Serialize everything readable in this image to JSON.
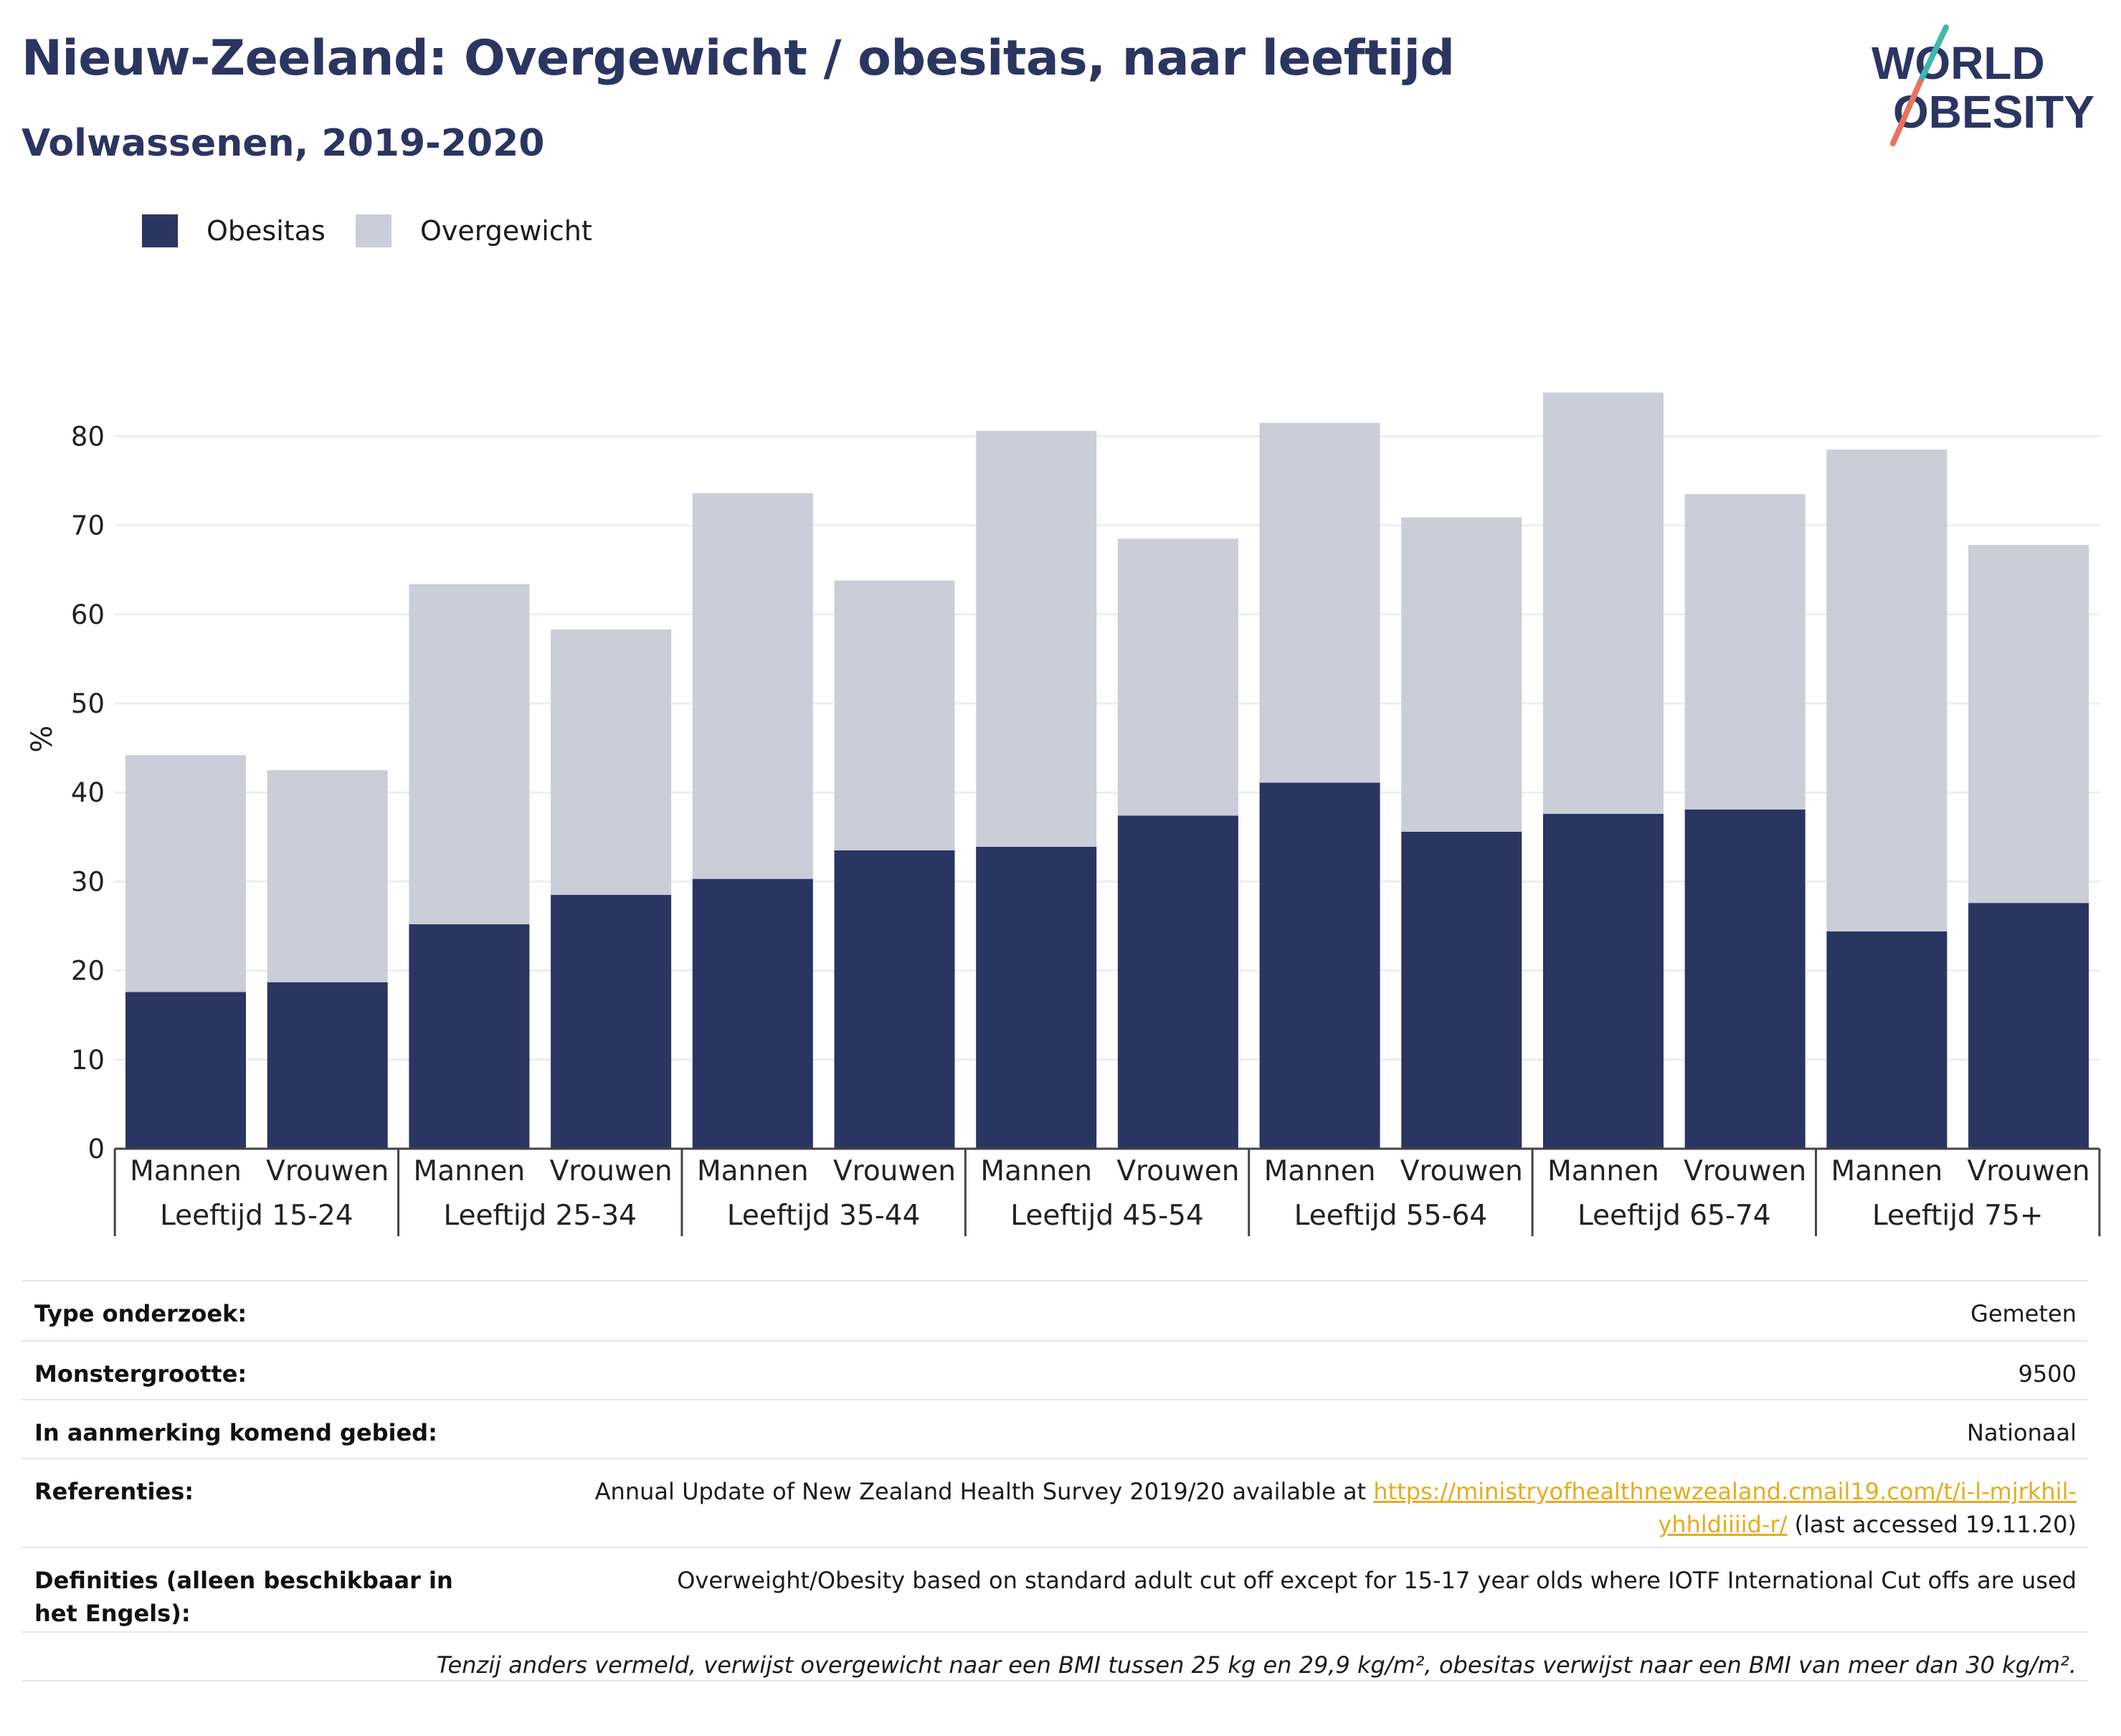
{
  "header": {
    "title": "Nieuw-Zeeland: Overgewicht / obesitas, naar leeftijd",
    "subtitle": "Volwassenen, 2019-2020"
  },
  "logo": {
    "line1": "WORLD",
    "line2": "OBESITY"
  },
  "colors": {
    "obesity": "#2b3561",
    "overweight": "#cbcdd8",
    "title": "#2b3561",
    "link": "#e6ab1e",
    "logo_slash_teal": "#3fb6ac",
    "logo_slash_coral": "#e9725d"
  },
  "legend": [
    {
      "label": "Obesitas",
      "color": "#2b3561"
    },
    {
      "label": "Overgewicht",
      "color": "#cbcdd8"
    }
  ],
  "chart_data": {
    "type": "bar",
    "stacked": true,
    "ylabel": "%",
    "ylim": [
      0,
      88
    ],
    "yticks": [
      0,
      10,
      20,
      30,
      40,
      50,
      60,
      70,
      80
    ],
    "grid": true,
    "groups": [
      "Leeftijd 15-24",
      "Leeftijd 25-34",
      "Leeftijd 35-44",
      "Leeftijd 45-54",
      "Leeftijd 55-64",
      "Leeftijd 65-74",
      "Leeftijd 75+"
    ],
    "subcategories": [
      "Mannen",
      "Vrouwen"
    ],
    "series": [
      {
        "name": "Obesitas",
        "values": [
          17.6,
          18.7,
          25.2,
          28.5,
          30.3,
          33.5,
          33.9,
          37.4,
          41.1,
          35.6,
          37.6,
          38.1,
          24.4,
          27.6
        ]
      },
      {
        "name": "Overgewicht",
        "values": [
          26.6,
          23.8,
          38.2,
          29.8,
          43.3,
          30.3,
          46.7,
          31.1,
          40.4,
          35.3,
          47.3,
          35.4,
          54.1,
          40.2
        ]
      }
    ]
  },
  "meta": [
    {
      "label": "Type onderzoek:",
      "value": "Gemeten"
    },
    {
      "label": "Monstergrootte:",
      "value": "9500"
    },
    {
      "label": "In aanmerking komend gebied:",
      "value": "Nationaal"
    },
    {
      "label": "Referenties:",
      "value_prefix": "Annual Update of New Zealand Health Survey 2019/20 available at ",
      "link": "https://ministryofhealthnewzealand.cmail19.com/t/i-l-mjrkhil-yhhldiiiid-r/",
      "value_suffix": " (last accessed 19.11.20)"
    },
    {
      "label": "Definities (alleen beschikbaar in het Engels):",
      "value": "Overweight/Obesity based on standard adult cut off except for 15-17 year olds where IOTF International Cut offs are used"
    }
  ],
  "footnote": "Tenzij anders vermeld, verwijst overgewicht naar een BMI tussen 25 kg en 29,9 kg/m², obesitas verwijst naar een BMI van meer dan 30 kg/m²."
}
